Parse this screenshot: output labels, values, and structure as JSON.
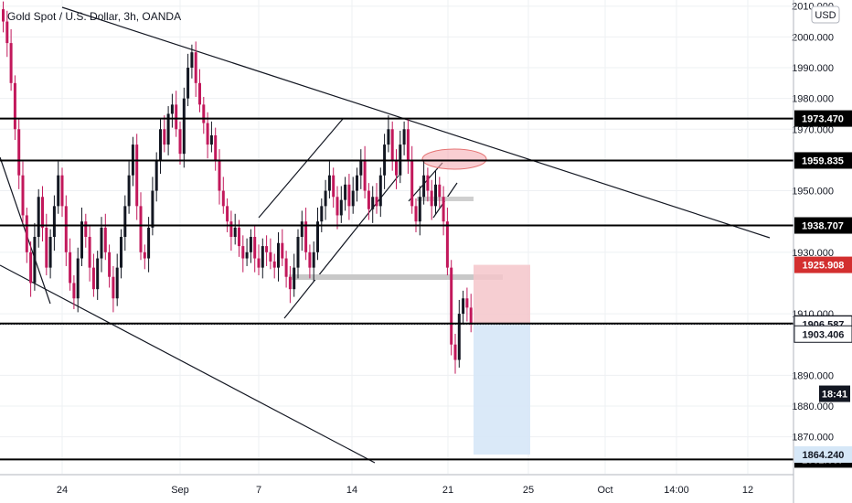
{
  "chart_title": "Gold Spot / U.S. Dollar, 3h, OANDA",
  "currency_button": "USD",
  "colors": {
    "up": "#131722",
    "down": "#c2185b",
    "grid": "#eef0f3",
    "axis_border": "#b2b5be",
    "red_zone": "#f5c6ca",
    "blue_zone": "#d6e7f7",
    "ellipse": "#f4a6ad"
  },
  "chart_data": {
    "type": "candlestick",
    "title": "Gold Spot / U.S. Dollar, 3h, OANDA",
    "ylim": [
      1858,
      2012
    ],
    "grid": true,
    "y_ticks": [
      {
        "value": 2010,
        "label": "2010.000"
      },
      {
        "value": 2000,
        "label": "2000.000"
      },
      {
        "value": 1990,
        "label": "1990.000"
      },
      {
        "value": 1980,
        "label": "1980.000"
      },
      {
        "value": 1970,
        "label": "1970.000"
      },
      {
        "value": 1950,
        "label": "1950.000"
      },
      {
        "value": 1930,
        "label": "1930.000"
      },
      {
        "value": 1910,
        "label": "1910.000"
      },
      {
        "value": 1890,
        "label": "1890.000"
      },
      {
        "value": 1880,
        "label": "1880.000"
      },
      {
        "value": 1870,
        "label": "1870.000"
      }
    ],
    "x_ticks": [
      "24",
      "Sep",
      "7",
      "14",
      "21",
      "25",
      "Oct",
      "14:00",
      "12"
    ],
    "horizontal_levels": [
      {
        "value": 1973.47,
        "label": "1973.470"
      },
      {
        "value": 1959.835,
        "label": "1959.835"
      },
      {
        "value": 1938.707,
        "label": "1938.707"
      },
      {
        "value": 1906.828,
        "label": "1906.828"
      },
      {
        "value": 1862.637,
        "label": "1862.637"
      }
    ],
    "price_tags": [
      {
        "value": 1925.908,
        "label": "1925.908",
        "style": "red"
      },
      {
        "value": 1906.587,
        "label": "1906.587",
        "style": "white"
      },
      {
        "value": 1903.406,
        "label": "1903.406",
        "style": "white"
      },
      {
        "value": 1884.0,
        "label": "18:41",
        "style": "dark"
      },
      {
        "value": 1864.24,
        "label": "1864.240",
        "style": "blue"
      }
    ],
    "current_price": 1906.587,
    "position": {
      "entry": 1906.828,
      "stop": 1925.908,
      "target": 1864.24
    },
    "close_series": [
      2005,
      1998,
      1985,
      1970,
      1955,
      1942,
      1930,
      1920,
      1935,
      1948,
      1938,
      1925,
      1935,
      1945,
      1955,
      1945,
      1930,
      1920,
      1915,
      1928,
      1940,
      1935,
      1925,
      1918,
      1928,
      1938,
      1930,
      1922,
      1915,
      1925,
      1935,
      1945,
      1955,
      1965,
      1945,
      1930,
      1928,
      1938,
      1950,
      1960,
      1970,
      1965,
      1975,
      1978,
      1970,
      1962,
      1980,
      1990,
      1995,
      1985,
      1978,
      1972,
      1965,
      1968,
      1960,
      1950,
      1945,
      1940,
      1935,
      1938,
      1932,
      1928,
      1930,
      1935,
      1928,
      1925,
      1932,
      1930,
      1927,
      1925,
      1933,
      1928,
      1922,
      1918,
      1925,
      1935,
      1940,
      1930,
      1925,
      1930,
      1940,
      1945,
      1950,
      1955,
      1948,
      1942,
      1947,
      1952,
      1945,
      1950,
      1955,
      1960,
      1950,
      1944,
      1948,
      1945,
      1955,
      1965,
      1970,
      1960,
      1955,
      1965,
      1970,
      1960,
      1945,
      1940,
      1948,
      1955,
      1950,
      1945,
      1952,
      1948,
      1940,
      1925,
      1900,
      1895,
      1910,
      1915,
      1912,
      1906.5
    ]
  }
}
